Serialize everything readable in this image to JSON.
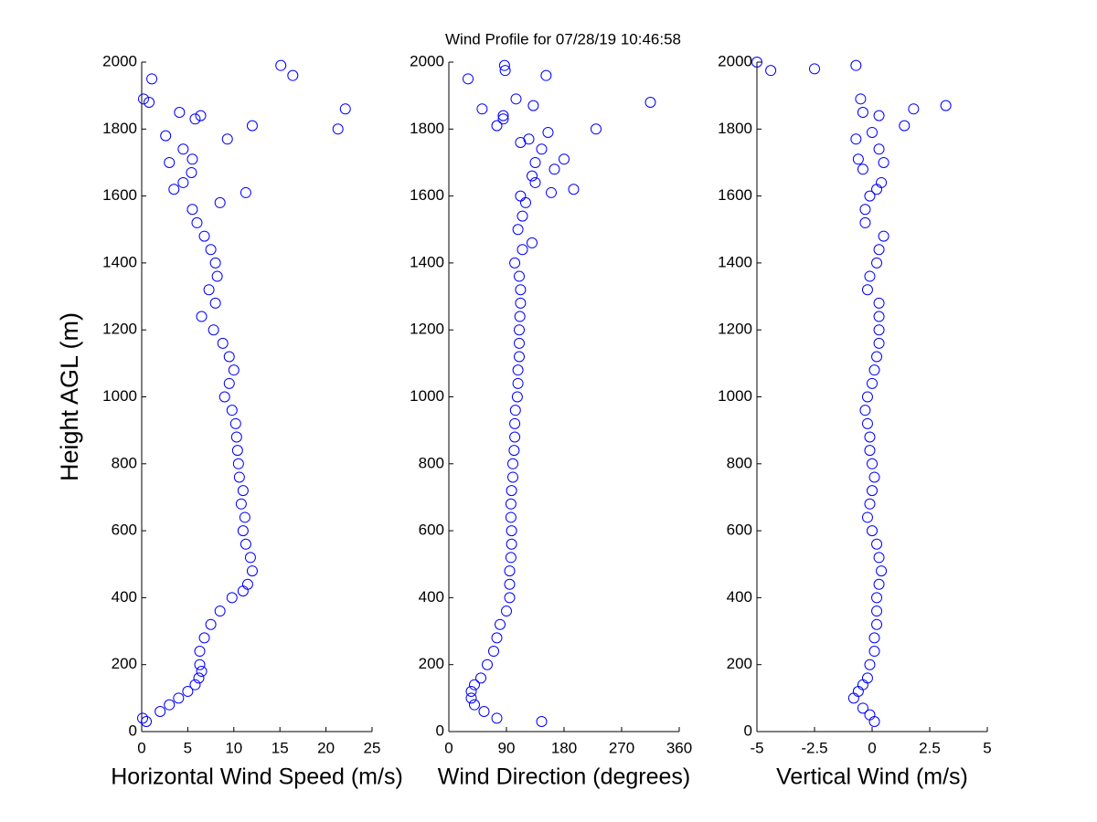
{
  "chart_data": [
    {
      "type": "scatter",
      "title": "Wind Profile for  07/28/19 10:46:58",
      "xlabel": "Horizontal Wind Speed (m/s)",
      "ylabel": "Height AGL (m)",
      "color": "#0000ff",
      "xlim": [
        0,
        25
      ],
      "xticks": [
        0,
        5,
        10,
        15,
        20,
        25
      ],
      "ylim": [
        0,
        2000
      ],
      "yticks": [
        0,
        200,
        400,
        600,
        800,
        1000,
        1200,
        1400,
        1600,
        1800,
        2000
      ],
      "y": [
        30,
        40,
        60,
        80,
        100,
        120,
        140,
        160,
        180,
        200,
        240,
        280,
        320,
        360,
        400,
        420,
        440,
        480,
        520,
        560,
        600,
        640,
        680,
        720,
        760,
        800,
        840,
        880,
        920,
        960,
        1000,
        1040,
        1080,
        1120,
        1160,
        1200,
        1240,
        1280,
        1320,
        1360,
        1400,
        1440,
        1480,
        1520,
        1560,
        1580,
        1610,
        1620,
        1640,
        1670,
        1700,
        1710,
        1740,
        1770,
        1780,
        1800,
        1810,
        1830,
        1840,
        1850,
        1860,
        1880,
        1890,
        1950,
        1960,
        1990
      ],
      "x": [
        0.5,
        0.1,
        2,
        3,
        4,
        5,
        5.8,
        6.2,
        6.5,
        6.3,
        6.3,
        6.8,
        7.5,
        8.5,
        9.8,
        11,
        11.5,
        12,
        11.8,
        11.3,
        11,
        11.2,
        10.8,
        11,
        10.6,
        10.5,
        10.4,
        10.3,
        10.2,
        9.8,
        9,
        9.5,
        10,
        9.5,
        8.8,
        7.8,
        6.5,
        8,
        7.3,
        8.2,
        8,
        7.5,
        6.8,
        6,
        5.5,
        8.5,
        11.3,
        3.5,
        4.5,
        5.4,
        3,
        5.5,
        4.5,
        9.3,
        2.6,
        21.3,
        12,
        5.8,
        6.4,
        4.1,
        22.1,
        0.8,
        0.2,
        1.1,
        16.4,
        15.1
      ]
    },
    {
      "type": "scatter",
      "xlabel": "Wind Direction (degrees)",
      "color": "#0000ff",
      "xlim": [
        0,
        360
      ],
      "xticks": [
        0,
        90,
        180,
        270,
        360
      ],
      "ylim": [
        0,
        2000
      ],
      "yticks": [
        0,
        200,
        400,
        600,
        800,
        1000,
        1200,
        1400,
        1600,
        1800,
        2000
      ],
      "y": [
        30,
        40,
        60,
        80,
        100,
        120,
        140,
        160,
        200,
        240,
        280,
        320,
        360,
        400,
        440,
        480,
        520,
        560,
        600,
        640,
        680,
        720,
        760,
        800,
        840,
        880,
        920,
        960,
        1000,
        1040,
        1080,
        1120,
        1160,
        1200,
        1240,
        1280,
        1320,
        1360,
        1400,
        1440,
        1460,
        1500,
        1540,
        1580,
        1600,
        1610,
        1620,
        1640,
        1660,
        1680,
        1700,
        1710,
        1740,
        1760,
        1770,
        1790,
        1800,
        1810,
        1830,
        1840,
        1860,
        1870,
        1880,
        1890,
        1950,
        1960,
        1975,
        1990
      ],
      "x": [
        145,
        75,
        55,
        40,
        35,
        35,
        40,
        50,
        60,
        70,
        75,
        80,
        90,
        95,
        95,
        95,
        97,
        98,
        98,
        97,
        97,
        98,
        100,
        100,
        102,
        103,
        103,
        104,
        107,
        108,
        108,
        110,
        110,
        110,
        111,
        112,
        112,
        110,
        103,
        115,
        130,
        108,
        115,
        120,
        112,
        160,
        195,
        135,
        130,
        165,
        135,
        180,
        145,
        112,
        125,
        155,
        230,
        75,
        85,
        85,
        52,
        132,
        315,
        105,
        30,
        152,
        88,
        87
      ]
    },
    {
      "type": "scatter",
      "xlabel": "Vertical Wind (m/s)",
      "color": "#0000ff",
      "xlim": [
        -5,
        5
      ],
      "xticks": [
        -5,
        -2.5,
        0,
        2.5,
        5
      ],
      "ylim": [
        0,
        2000
      ],
      "yticks": [
        0,
        200,
        400,
        600,
        800,
        1000,
        1200,
        1400,
        1600,
        1800,
        2000
      ],
      "y": [
        30,
        50,
        70,
        100,
        120,
        140,
        160,
        200,
        240,
        280,
        320,
        360,
        400,
        440,
        480,
        520,
        560,
        600,
        640,
        680,
        720,
        760,
        800,
        840,
        880,
        920,
        960,
        1000,
        1040,
        1080,
        1120,
        1160,
        1200,
        1240,
        1280,
        1320,
        1360,
        1400,
        1440,
        1480,
        1520,
        1560,
        1600,
        1620,
        1640,
        1680,
        1700,
        1710,
        1740,
        1770,
        1790,
        1810,
        1840,
        1850,
        1860,
        1870,
        1890,
        1975,
        1980,
        1990,
        2000
      ],
      "x": [
        0.1,
        -0.1,
        -0.4,
        -0.8,
        -0.6,
        -0.4,
        -0.2,
        -0.1,
        0.1,
        0.1,
        0.2,
        0.2,
        0.2,
        0.3,
        0.4,
        0.3,
        0.2,
        0,
        -0.2,
        -0.1,
        0,
        0.1,
        0,
        -0.1,
        -0.1,
        -0.2,
        -0.3,
        -0.2,
        0,
        0.1,
        0.2,
        0.3,
        0.3,
        0.3,
        0.3,
        -0.2,
        -0.1,
        0.2,
        0.3,
        0.5,
        -0.3,
        -0.3,
        -0.1,
        0.2,
        0.4,
        -0.4,
        0.5,
        -0.6,
        0.3,
        -0.7,
        0,
        1.4,
        0.3,
        -0.4,
        1.8,
        3.2,
        -0.5,
        -4.4,
        -2.5,
        -0.7,
        -5
      ]
    }
  ]
}
